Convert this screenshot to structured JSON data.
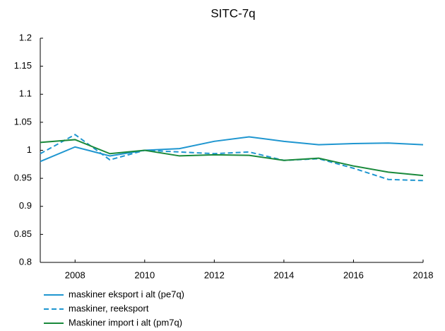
{
  "chart_data": {
    "type": "line",
    "title": "SITC-7q",
    "x": [
      2007,
      2008,
      2009,
      2010,
      2011,
      2012,
      2013,
      2014,
      2015,
      2016,
      2017,
      2018
    ],
    "series": [
      {
        "name": "maskiner eksport i alt (pe7q)",
        "color": "#1f96d0",
        "dashed": false,
        "values": [
          0.98,
          1.006,
          0.99,
          1.0,
          1.003,
          1.016,
          1.024,
          1.016,
          1.01,
          1.012,
          1.013,
          1.01
        ]
      },
      {
        "name": "maskiner, reeksport",
        "color": "#1f96d0",
        "dashed": true,
        "values": [
          0.994,
          1.028,
          0.983,
          1.0,
          0.997,
          0.994,
          0.997,
          0.982,
          0.985,
          0.968,
          0.948,
          0.946
        ]
      },
      {
        "name": "Maskiner import i alt (pm7q)",
        "color": "#1a8a3c",
        "dashed": false,
        "values": [
          1.014,
          1.019,
          0.994,
          1.0,
          0.99,
          0.992,
          0.991,
          0.982,
          0.986,
          0.972,
          0.961,
          0.955
        ]
      }
    ],
    "xlim": [
      2007,
      2018
    ],
    "xticks": [
      2008,
      2010,
      2012,
      2014,
      2016,
      2018
    ],
    "ylim": [
      0.8,
      1.2
    ],
    "yticks": [
      0.8,
      0.85,
      0.9,
      0.95,
      1,
      1.05,
      1.1,
      1.15,
      1.2
    ],
    "grid": false
  }
}
